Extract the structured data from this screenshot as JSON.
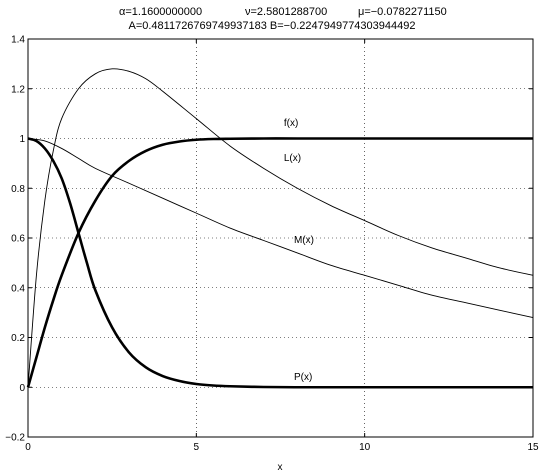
{
  "chart_data": {
    "type": "line",
    "title_line1": [
      "α=1.1600000000",
      "ν=2.5801288700",
      "μ=−0.0782271150"
    ],
    "title_line2": "A=0.4811726769749937183  B=−0.2247949774303944492",
    "xlabel": "x",
    "ylabel": "",
    "xlim": [
      0,
      15
    ],
    "ylim": [
      -0.2,
      1.4
    ],
    "grid": true,
    "grid_style": "dotted",
    "x_ticks": [
      0,
      5,
      10,
      15
    ],
    "x_tick_labels": [
      "0",
      "5",
      "10",
      "15"
    ],
    "y_ticks": [
      -0.2,
      0,
      0.2,
      0.4,
      0.6,
      0.8,
      1,
      1.2,
      1.4
    ],
    "y_tick_labels": [
      "−0.2",
      "0",
      "0.2",
      "0.4",
      "0.6",
      "0.8",
      "1",
      "1.2",
      "1.4"
    ],
    "series": [
      {
        "name": "f(x)",
        "style": "thick",
        "x": [
          0,
          0.25,
          0.5,
          0.75,
          1,
          1.5,
          2,
          2.5,
          3,
          3.5,
          4,
          4.5,
          5,
          5.5,
          6,
          7,
          8,
          9,
          10,
          11,
          12,
          13,
          14,
          15
        ],
        "y": [
          0,
          0.12,
          0.24,
          0.35,
          0.45,
          0.62,
          0.75,
          0.85,
          0.91,
          0.95,
          0.975,
          0.988,
          0.995,
          0.998,
          0.999,
          1,
          1,
          1,
          1,
          1,
          1,
          1,
          1,
          1
        ],
        "label_at": [
          7.6,
          1.05
        ]
      },
      {
        "name": "L(x)",
        "style": "thin",
        "x": [
          0,
          0.25,
          0.5,
          0.75,
          1,
          1.5,
          2,
          2.5,
          3,
          3.5,
          4,
          5,
          6,
          7,
          8,
          9,
          10,
          11,
          12,
          13,
          14,
          15
        ],
        "y": [
          0,
          0.45,
          0.75,
          0.95,
          1.08,
          1.2,
          1.26,
          1.28,
          1.27,
          1.24,
          1.19,
          1.08,
          0.97,
          0.88,
          0.8,
          0.73,
          0.67,
          0.61,
          0.56,
          0.52,
          0.48,
          0.45
        ],
        "label_at": [
          7.6,
          0.91
        ]
      },
      {
        "name": "M(x)",
        "style": "thin",
        "x": [
          0,
          0.5,
          1,
          1.5,
          2,
          3,
          4,
          5,
          6,
          7,
          8,
          9,
          10,
          11,
          12,
          13,
          14,
          15
        ],
        "y": [
          1,
          0.99,
          0.96,
          0.92,
          0.88,
          0.82,
          0.76,
          0.7,
          0.64,
          0.59,
          0.54,
          0.49,
          0.45,
          0.41,
          0.37,
          0.34,
          0.31,
          0.28
        ],
        "label_at": [
          7.9,
          0.58
        ]
      },
      {
        "name": "P(x)",
        "style": "thick",
        "x": [
          0,
          0.25,
          0.5,
          0.75,
          1,
          1.25,
          1.5,
          1.75,
          2,
          2.5,
          3,
          3.5,
          4,
          4.5,
          5,
          5.5,
          6,
          7,
          8,
          9,
          10,
          11,
          12,
          13,
          14,
          15
        ],
        "y": [
          1,
          0.99,
          0.96,
          0.91,
          0.84,
          0.74,
          0.62,
          0.5,
          0.39,
          0.24,
          0.14,
          0.08,
          0.045,
          0.025,
          0.013,
          0.007,
          0.004,
          0.001,
          0,
          0,
          0,
          0,
          0,
          0,
          0,
          0
        ],
        "label_at": [
          7.9,
          0.03
        ]
      }
    ]
  }
}
